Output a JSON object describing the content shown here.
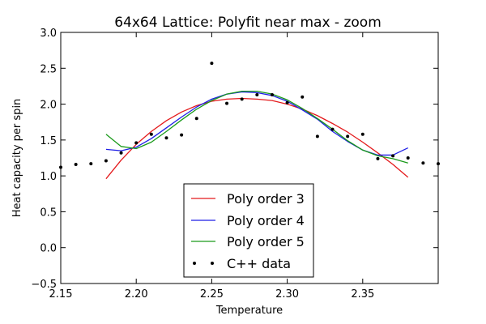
{
  "chart_data": {
    "type": "line",
    "title": "64x64 Lattice: Polyfit near max - zoom",
    "xlabel": "Temperature",
    "ylabel": "Heat capacity per spin",
    "xlim": [
      2.15,
      2.4
    ],
    "ylim": [
      -0.5,
      3.0
    ],
    "xticks": [
      2.15,
      2.2,
      2.25,
      2.3,
      2.35
    ],
    "xtick_labels": [
      "2.15",
      "2.20",
      "2.25",
      "2.30",
      "2.35"
    ],
    "yticks": [
      -0.5,
      0.0,
      0.5,
      1.0,
      1.5,
      2.0,
      2.5,
      3.0
    ],
    "ytick_labels": [
      "−0.5",
      "0.0",
      "0.5",
      "1.0",
      "1.5",
      "2.0",
      "2.5",
      "3.0"
    ],
    "grid": false,
    "legend_position": "lower-center",
    "series": [
      {
        "name": "Poly order 3",
        "kind": "line",
        "color": "#e41a1c",
        "x": [
          2.18,
          2.19,
          2.2,
          2.21,
          2.22,
          2.23,
          2.24,
          2.25,
          2.26,
          2.27,
          2.28,
          2.29,
          2.3,
          2.31,
          2.32,
          2.33,
          2.34,
          2.35,
          2.36,
          2.37,
          2.38
        ],
        "y": [
          0.96,
          1.22,
          1.44,
          1.62,
          1.77,
          1.89,
          1.98,
          2.04,
          2.07,
          2.08,
          2.07,
          2.05,
          2.0,
          1.93,
          1.84,
          1.73,
          1.61,
          1.47,
          1.32,
          1.16,
          0.98
        ]
      },
      {
        "name": "Poly order 4",
        "kind": "line",
        "color": "#1f1fe6",
        "x": [
          2.18,
          2.19,
          2.2,
          2.21,
          2.22,
          2.23,
          2.24,
          2.25,
          2.26,
          2.27,
          2.28,
          2.29,
          2.3,
          2.31,
          2.32,
          2.33,
          2.34,
          2.35,
          2.36,
          2.37,
          2.38
        ],
        "y": [
          1.37,
          1.35,
          1.4,
          1.52,
          1.67,
          1.82,
          1.96,
          2.07,
          2.14,
          2.17,
          2.16,
          2.12,
          2.04,
          1.92,
          1.79,
          1.62,
          1.48,
          1.36,
          1.29,
          1.29,
          1.39
        ]
      },
      {
        "name": "Poly order 5",
        "kind": "line",
        "color": "#1a9a1a",
        "x": [
          2.18,
          2.19,
          2.2,
          2.21,
          2.22,
          2.23,
          2.24,
          2.25,
          2.26,
          2.27,
          2.28,
          2.29,
          2.3,
          2.31,
          2.32,
          2.33,
          2.34,
          2.35,
          2.36,
          2.37,
          2.38
        ],
        "y": [
          1.58,
          1.41,
          1.38,
          1.47,
          1.62,
          1.78,
          1.93,
          2.05,
          2.14,
          2.18,
          2.18,
          2.14,
          2.06,
          1.94,
          1.8,
          1.65,
          1.49,
          1.36,
          1.28,
          1.24,
          1.18
        ]
      },
      {
        "name": "C++ data",
        "kind": "scatter",
        "color": "#000000",
        "x": [
          2.15,
          2.16,
          2.17,
          2.18,
          2.19,
          2.2,
          2.21,
          2.22,
          2.23,
          2.24,
          2.25,
          2.26,
          2.27,
          2.28,
          2.29,
          2.3,
          2.31,
          2.32,
          2.33,
          2.34,
          2.35,
          2.36,
          2.37,
          2.38,
          2.39,
          2.4
        ],
        "y": [
          1.12,
          1.16,
          1.17,
          1.21,
          1.32,
          1.46,
          1.58,
          1.53,
          1.57,
          1.8,
          2.57,
          2.01,
          2.07,
          2.13,
          2.13,
          2.02,
          2.1,
          1.55,
          1.65,
          1.55,
          1.58,
          1.24,
          1.28,
          1.25,
          1.18,
          1.17
        ]
      }
    ]
  }
}
